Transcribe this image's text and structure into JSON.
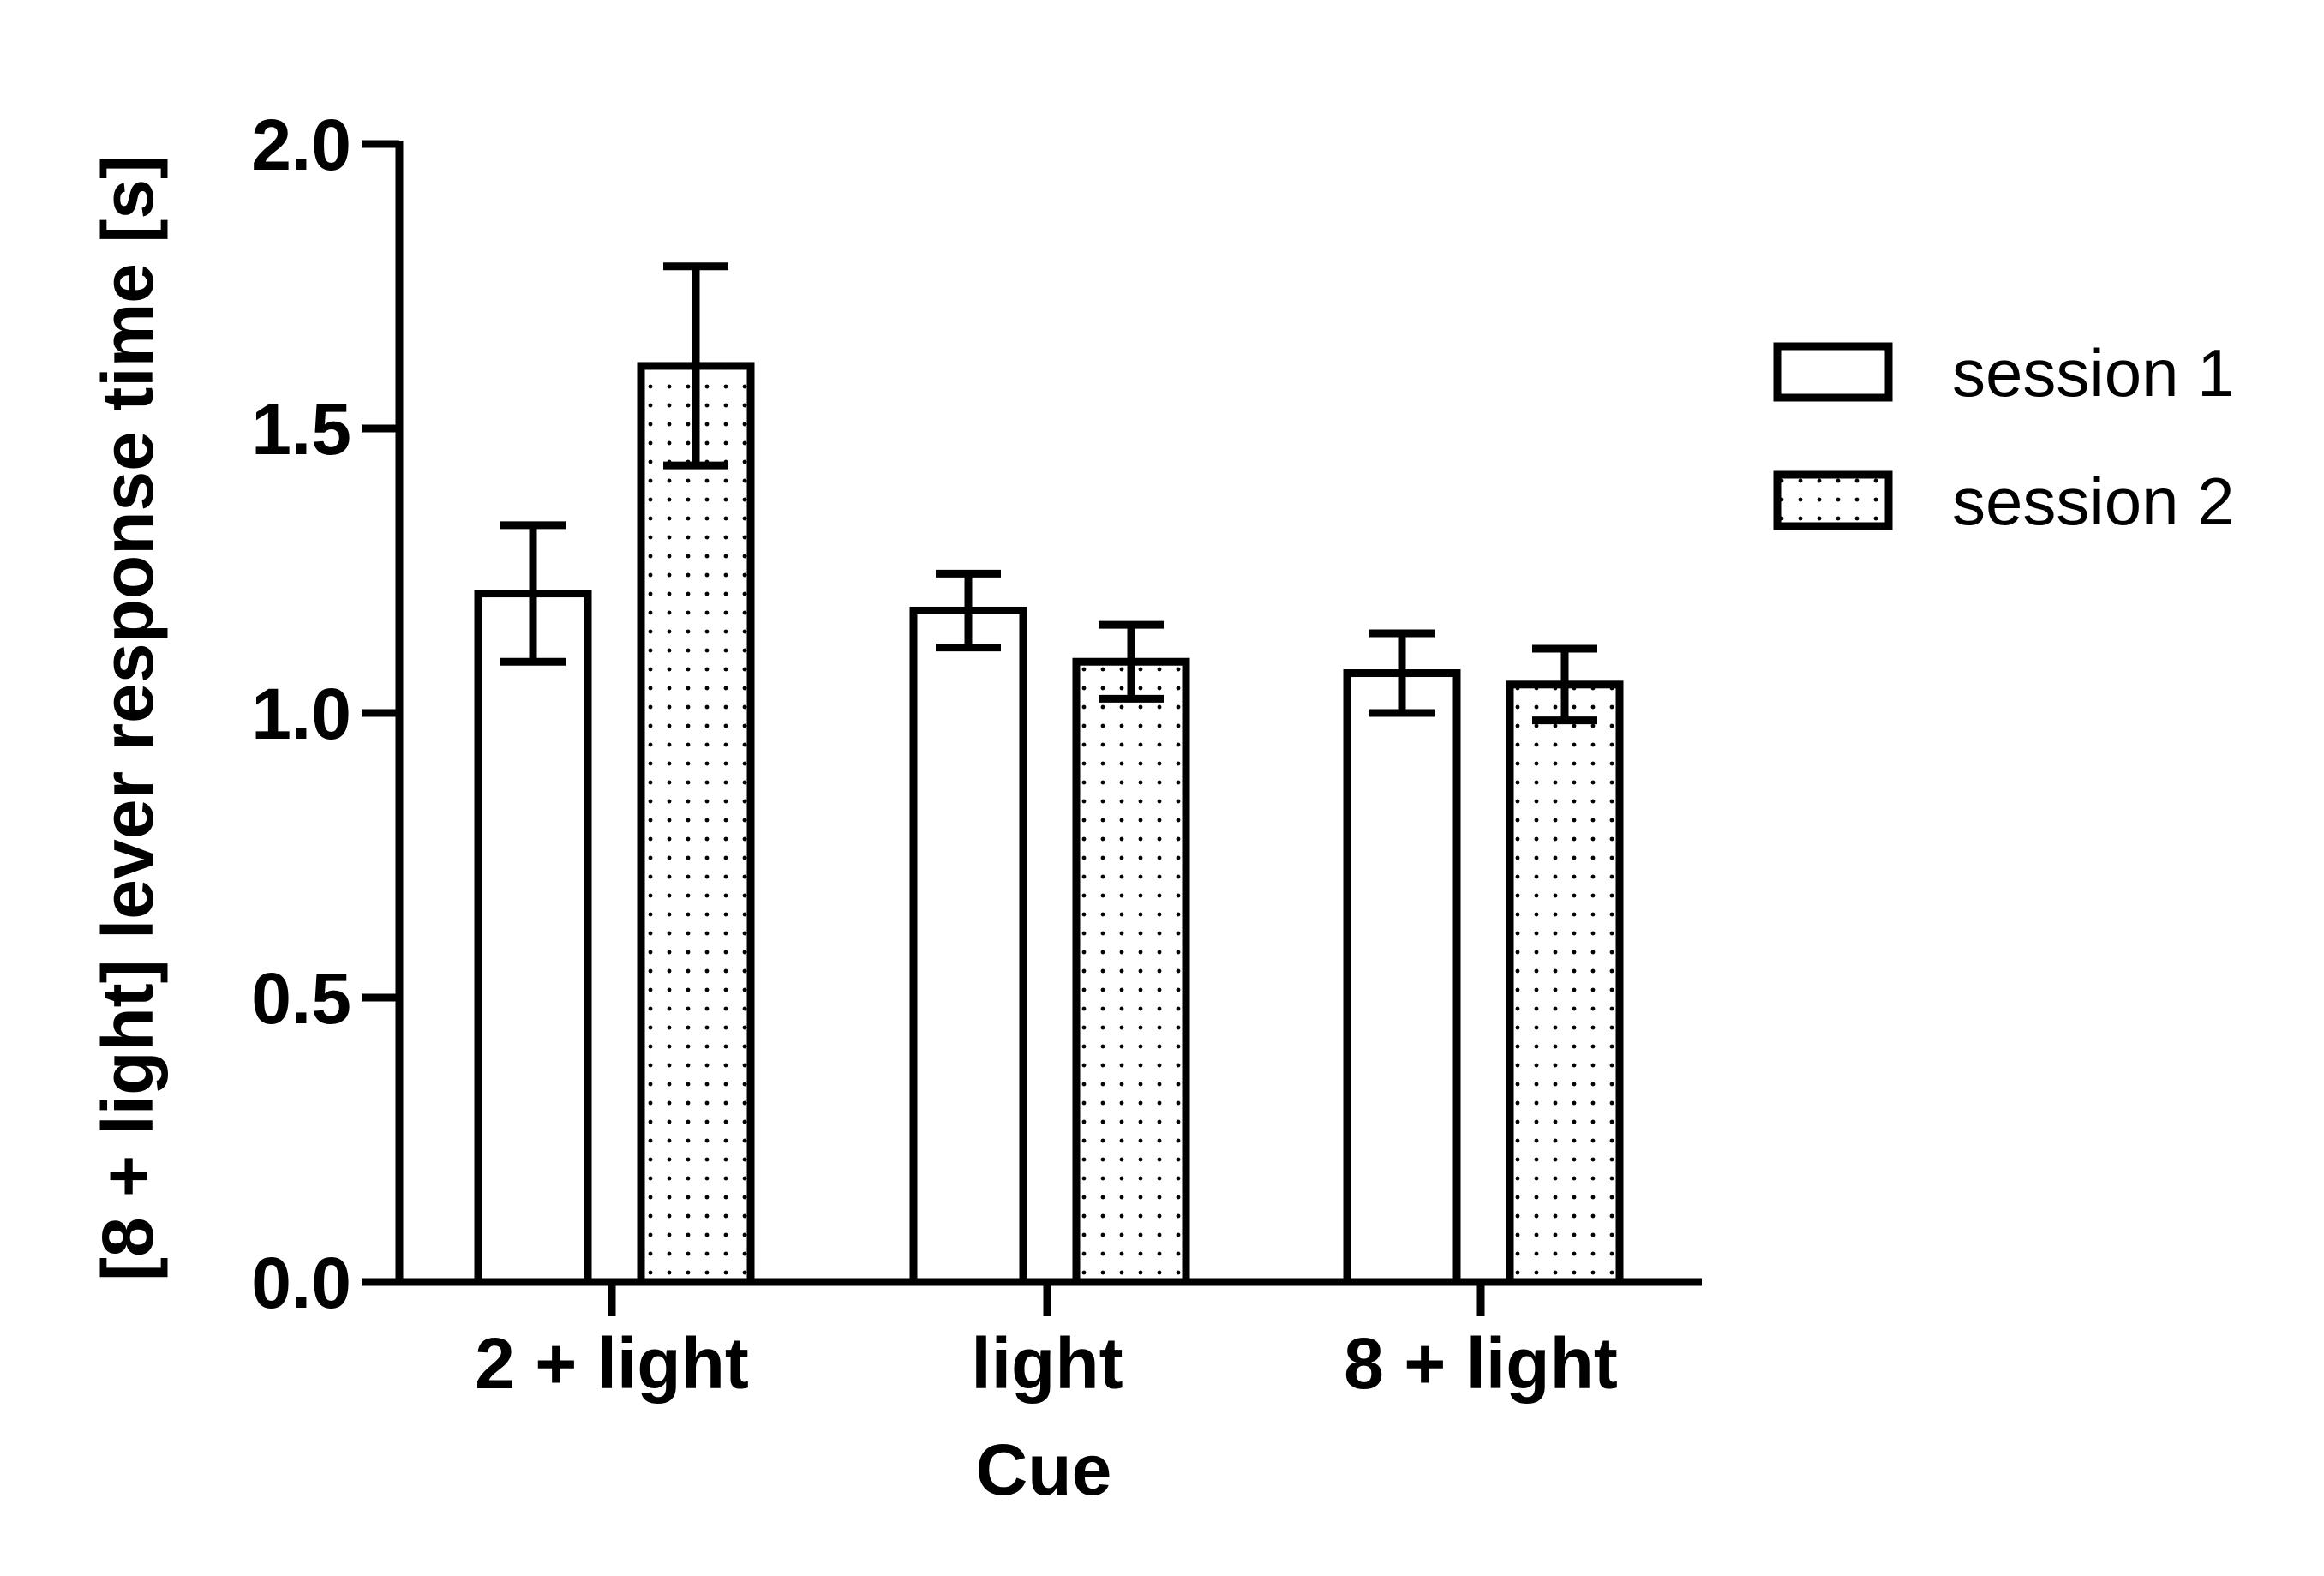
{
  "chart_data": {
    "type": "bar",
    "title": "",
    "xlabel": "Cue",
    "ylabel": "[8 + light] lever response time [s]",
    "categories": [
      "2 + light",
      "light",
      "8 + light"
    ],
    "ylim": [
      0.0,
      2.0
    ],
    "yticks": [
      0.0,
      0.5,
      1.0,
      1.5,
      2.0
    ],
    "ytick_labels": [
      "0.0",
      "0.5",
      "1.0",
      "1.5",
      "2.0"
    ],
    "grid": false,
    "legend_position": "right",
    "series": [
      {
        "name": "session 1",
        "pattern": "none",
        "values": [
          1.21,
          1.18,
          1.07
        ],
        "error": [
          0.12,
          0.065,
          0.07
        ]
      },
      {
        "name": "session 2",
        "pattern": "dots",
        "values": [
          1.61,
          1.09,
          1.05
        ],
        "error": [
          0.175,
          0.065,
          0.063
        ]
      }
    ],
    "colors": {
      "stroke": "#000000",
      "fill": "#ffffff"
    }
  }
}
